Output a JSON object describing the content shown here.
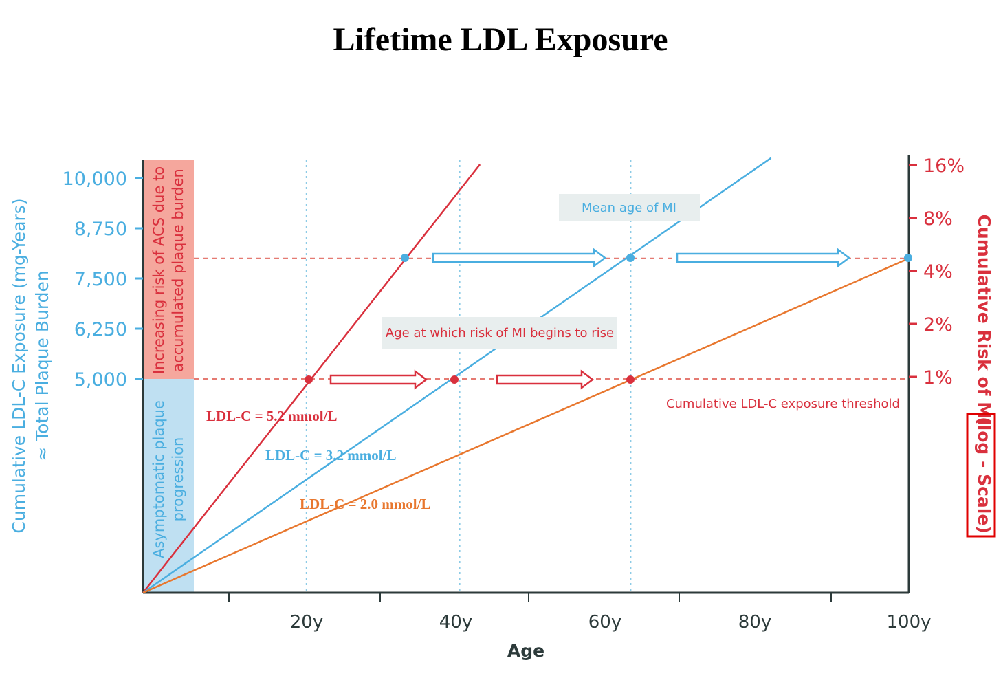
{
  "chart_data": {
    "type": "line",
    "title": "Lifetime LDL Exposure",
    "xlabel": "Age",
    "ylabel_left": "Cumulative LDL-C Exposure (mg-Years)",
    "ylabel_left_sub": "≈ Total Plaque Burden",
    "ylabel_right": "Cumulative Risk of MI",
    "ylabel_right_boxed": "(log - Scale)",
    "x_ticks": [
      {
        "value": 20,
        "label": "20y"
      },
      {
        "value": 40,
        "label": "40y"
      },
      {
        "value": 60,
        "label": "60y"
      },
      {
        "value": 80,
        "label": "80y"
      },
      {
        "value": 100,
        "label": "100y"
      }
    ],
    "x_minor_ticks": [
      10,
      30,
      50,
      70,
      90
    ],
    "y_left_ticks": [
      {
        "value": 5000,
        "label": "5,000"
      },
      {
        "value": 6250,
        "label": "6,250"
      },
      {
        "value": 7500,
        "label": "7,500"
      },
      {
        "value": 8750,
        "label": "8,750"
      },
      {
        "value": 10000,
        "label": "10,000"
      }
    ],
    "y_right_scale": "log",
    "y_right_ticks": [
      {
        "value": 1,
        "label": "1%"
      },
      {
        "value": 2,
        "label": "2%"
      },
      {
        "value": 4,
        "label": "4%"
      },
      {
        "value": 8,
        "label": "8%"
      },
      {
        "value": 16,
        "label": "16%"
      }
    ],
    "xlim": [
      0,
      100
    ],
    "series": [
      {
        "name": "LDL-C = 5.2 mmol/L",
        "color": "#d9303d",
        "points": [
          [
            0,
            0
          ],
          [
            20,
            5000
          ],
          [
            33,
            8000
          ],
          [
            44,
            10340
          ]
        ]
      },
      {
        "name": "LDL-C = 3.2 mmol/L",
        "color": "#4aaee0",
        "points": [
          [
            0,
            0
          ],
          [
            40,
            5000
          ],
          [
            63.5,
            8000
          ],
          [
            82,
            10500
          ]
        ]
      },
      {
        "name": "LDL-C = 2.0 mmol/L",
        "color": "#e8772e",
        "points": [
          [
            0,
            0
          ],
          [
            63.5,
            5000
          ],
          [
            100,
            8000
          ]
        ]
      }
    ],
    "markers": {
      "threshold_5000": {
        "color": "#d9303d",
        "ages": [
          20,
          40,
          63.5
        ]
      },
      "level_8000": {
        "color": "#4aaee0",
        "ages": [
          33,
          63.5,
          100
        ]
      }
    },
    "reference_lines": {
      "horizontal_values": [
        5000,
        8000
      ],
      "vertical_ages": [
        20,
        40,
        63.5
      ]
    },
    "bands": [
      {
        "label": "Increasing risk of ACS due to accumulated plaque burden",
        "from": 5000,
        "to": 10500,
        "color": "#f5a79d",
        "text_color": "#d9303d"
      },
      {
        "label": "Asymptomatic plaque progression",
        "from": 0,
        "to": 5000,
        "color": "#bfe0f2",
        "text_color": "#4aaee0"
      }
    ],
    "annotations": {
      "mean_age": "Mean age of MI",
      "risk_rise": "Age at which risk of MI begins to rise",
      "threshold": "Cumulative LDL-C exposure threshold"
    },
    "grid": false,
    "colors": {
      "blue": "#4aaee0",
      "red": "#d9303d",
      "orange": "#e8772e",
      "axis": "#2c3a3a"
    }
  }
}
